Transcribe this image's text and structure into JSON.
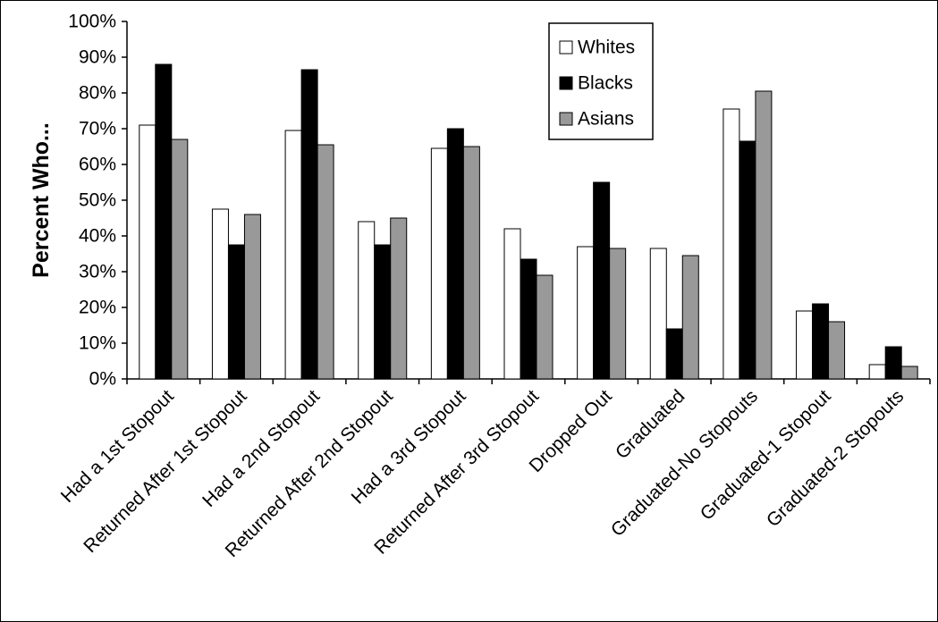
{
  "chart_data": {
    "type": "bar",
    "title": "",
    "xlabel": "",
    "ylabel": "Percent Who...",
    "ylim": [
      0,
      100
    ],
    "y_ticks": [
      "0%",
      "10%",
      "20%",
      "30%",
      "40%",
      "50%",
      "60%",
      "70%",
      "80%",
      "90%",
      "100%"
    ],
    "grid": false,
    "legend_position": "top-right",
    "categories": [
      "Had a 1st Stopout",
      "Returned After 1st Stopout",
      "Had a 2nd Stopout",
      "Returned After 2nd Stopout",
      "Had a 3rd Stopout",
      "Returned After 3rd Stopout",
      "Dropped Out",
      "Graduated",
      "Graduated-No Stopouts",
      "Graduated-1 Stopout",
      "Graduated-2 Stopouts"
    ],
    "series": [
      {
        "name": "Whites",
        "color": "#ffffff",
        "values": [
          71,
          47.5,
          69.5,
          44,
          64.5,
          42,
          37,
          36.5,
          75.5,
          19,
          4
        ]
      },
      {
        "name": "Blacks",
        "color": "#000000",
        "values": [
          88,
          37.5,
          86.5,
          37.5,
          70,
          33.5,
          55,
          14,
          66.5,
          21,
          9
        ]
      },
      {
        "name": "Asians",
        "color": "#999999",
        "values": [
          67,
          46,
          65.5,
          45,
          65,
          29,
          36.5,
          34.5,
          80.5,
          16,
          3.5
        ]
      }
    ]
  }
}
